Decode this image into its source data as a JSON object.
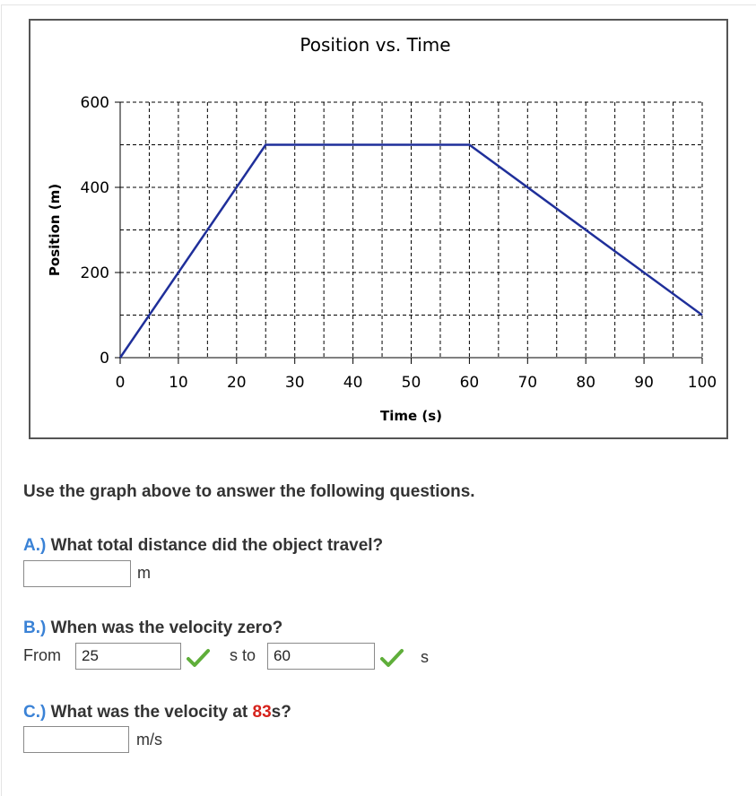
{
  "chart_data": {
    "type": "line",
    "title": "Position vs. Time",
    "xlabel": "Time (s)",
    "ylabel": "Position (m)",
    "xlim": [
      0,
      100
    ],
    "ylim": [
      0,
      600
    ],
    "x_ticks": [
      "0",
      "10",
      "20",
      "30",
      "40",
      "50",
      "60",
      "70",
      "80",
      "90",
      "100"
    ],
    "y_ticks": [
      "0",
      "200",
      "400",
      "600"
    ],
    "grid": true,
    "series": [
      {
        "x": [
          0,
          25,
          60,
          100
        ],
        "y": [
          0,
          500,
          500,
          100
        ]
      }
    ],
    "line_color": "#1f2f9a"
  },
  "instructions": "Use the graph above to answer the following questions.",
  "question_a": {
    "letter": "A.)",
    "text": "What total distance did the object travel?",
    "answer": "",
    "unit": "m"
  },
  "question_b": {
    "letter": "B.)",
    "text": "When was the velocity zero?",
    "from_label": "From",
    "from_value": "25",
    "to_label": "s to",
    "to_value": "60",
    "unit": "s"
  },
  "question_c": {
    "letter": "C.)",
    "text_before": "What was the velocity at",
    "highlight": "83",
    "text_after": "s?",
    "answer": "",
    "unit": "m/s"
  },
  "colors": {
    "letter": "#3a82d6",
    "highlight": "#d6221b",
    "check": "#5fae3a"
  }
}
